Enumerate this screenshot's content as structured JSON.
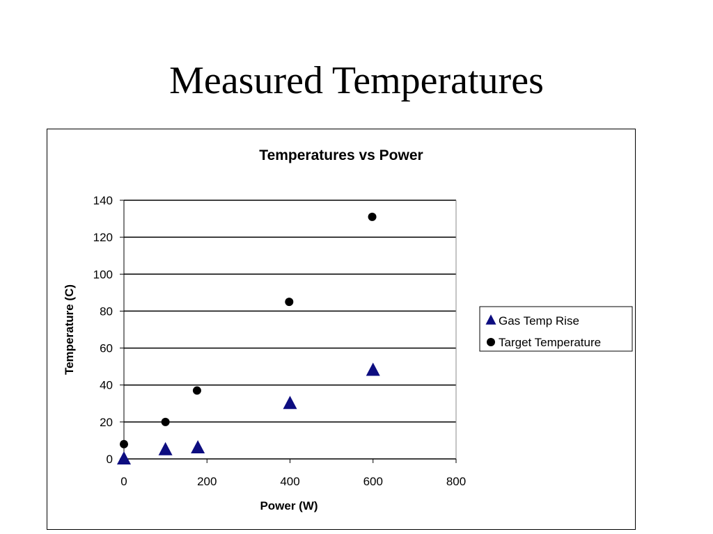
{
  "slide": {
    "title": "Measured Temperatures"
  },
  "colors": {
    "triangle": "#0d0d80",
    "circle": "#000000",
    "grid": "#000000"
  },
  "chart_data": {
    "type": "scatter",
    "title": "Temperatures vs Power",
    "xlabel": "Power (W)",
    "ylabel": "Temperature (C)",
    "xlim": [
      0,
      800
    ],
    "ylim": [
      0,
      140
    ],
    "xticks": [
      0,
      200,
      400,
      600,
      800
    ],
    "yticks": [
      0,
      20,
      40,
      60,
      80,
      100,
      120,
      140
    ],
    "grid": "horizontal",
    "legend_position": "right",
    "series": [
      {
        "name": "Gas Temp Rise",
        "marker": "triangle",
        "points": [
          [
            0,
            0
          ],
          [
            100,
            5
          ],
          [
            178,
            6
          ],
          [
            400,
            30
          ],
          [
            600,
            48
          ]
        ]
      },
      {
        "name": "Target Temperature",
        "marker": "circle",
        "points": [
          [
            0,
            8
          ],
          [
            100,
            20
          ],
          [
            176,
            37
          ],
          [
            398,
            85
          ],
          [
            598,
            131
          ]
        ]
      }
    ]
  }
}
